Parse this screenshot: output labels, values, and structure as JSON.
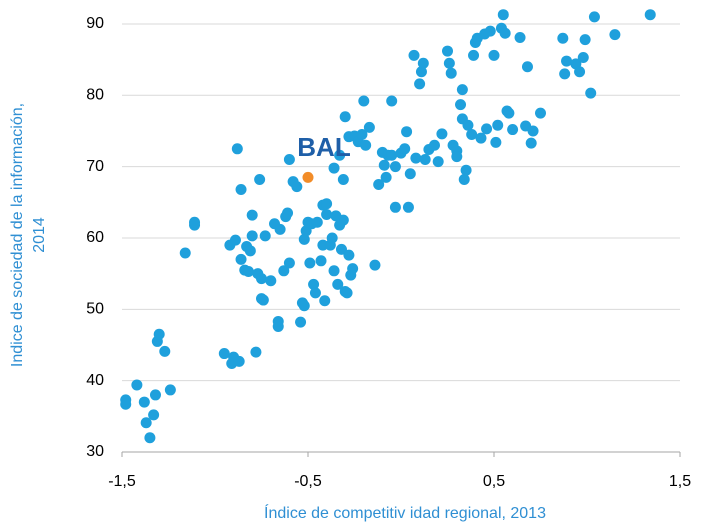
{
  "chart_data": {
    "type": "scatter",
    "xlabel": "Índice de competitiv idad regional,  2013",
    "ylabel": [
      "Indice de sociedad de la información,",
      "2014"
    ],
    "color": "#1fa0dc",
    "x": [
      -1.48,
      -1.48,
      -1.42,
      -1.38,
      -1.37,
      -1.35,
      -1.33,
      -1.32,
      -1.31,
      -1.3,
      -1.27,
      -1.24,
      -1.16,
      -1.11,
      -1.11,
      -0.95,
      -0.91,
      -0.9,
      -0.87,
      -0.92,
      -0.89,
      -0.88,
      -0.86,
      -0.86,
      -0.84,
      -0.83,
      -0.82,
      -0.81,
      -0.8,
      -0.8,
      -0.78,
      -0.77,
      -0.76,
      -0.75,
      -0.75,
      -0.74,
      -0.73,
      -0.7,
      -0.68,
      -0.66,
      -0.66,
      -0.65,
      -0.63,
      -0.62,
      -0.61,
      -0.6,
      -0.6,
      -0.58,
      -0.56,
      -0.54,
      -0.53,
      -0.52,
      -0.52,
      -0.51,
      -0.5,
      -0.49,
      -0.48,
      -0.47,
      -0.46,
      -0.45,
      -0.43,
      -0.42,
      -0.42,
      -0.41,
      -0.4,
      -0.4,
      -0.38,
      -0.37,
      -0.36,
      -0.35,
      -0.34,
      -0.33,
      -0.32,
      -0.31,
      -0.3,
      -0.29,
      -0.28,
      -0.27,
      -0.26,
      -0.36,
      -0.33,
      -0.31,
      -0.3,
      -0.28,
      -0.25,
      -0.23,
      -0.21,
      -0.2,
      -0.19,
      -0.17,
      -0.14,
      -0.12,
      -0.1,
      -0.09,
      -0.08,
      -0.07,
      -0.05,
      -0.05,
      -0.03,
      -0.03,
      0.0,
      0.02,
      0.03,
      0.04,
      0.05,
      0.07,
      0.08,
      0.1,
      0.11,
      0.12,
      0.13,
      0.15,
      0.18,
      0.2,
      0.22,
      0.25,
      0.26,
      0.27,
      0.28,
      0.3,
      0.3,
      0.32,
      0.33,
      0.33,
      0.34,
      0.35,
      0.36,
      0.38,
      0.39,
      0.4,
      0.41,
      0.43,
      0.45,
      0.46,
      0.48,
      0.5,
      0.51,
      0.52,
      0.54,
      0.55,
      0.56,
      0.57,
      0.58,
      0.6,
      0.64,
      0.67,
      0.68,
      0.7,
      0.71,
      0.75,
      0.87,
      0.88,
      0.89,
      0.94,
      0.96,
      0.98,
      0.99,
      1.02,
      1.04,
      1.15,
      1.34
    ],
    "y": [
      37.3,
      36.7,
      39.4,
      37.0,
      34.1,
      32.0,
      35.2,
      38.0,
      45.5,
      46.5,
      44.1,
      38.7,
      57.9,
      61.8,
      62.2,
      43.8,
      42.4,
      43.3,
      42.7,
      59.0,
      59.7,
      72.5,
      66.8,
      57.0,
      55.5,
      58.8,
      55.3,
      58.2,
      60.3,
      63.2,
      44.0,
      55.0,
      68.2,
      54.3,
      51.5,
      51.3,
      60.3,
      54.0,
      62.0,
      47.6,
      48.3,
      61.2,
      55.4,
      63.0,
      63.5,
      56.5,
      71.0,
      67.9,
      67.2,
      48.2,
      50.9,
      50.5,
      59.8,
      61.0,
      62.2,
      56.5,
      62.0,
      53.5,
      52.3,
      62.2,
      56.8,
      64.6,
      59.0,
      51.2,
      63.3,
      64.8,
      59.0,
      60.0,
      55.4,
      63.1,
      53.5,
      61.8,
      58.4,
      62.5,
      52.5,
      52.3,
      57.6,
      54.8,
      55.7,
      69.8,
      71.6,
      68.2,
      77.0,
      74.2,
      74.3,
      73.5,
      74.5,
      79.2,
      73.0,
      75.5,
      56.2,
      67.5,
      72.0,
      70.2,
      68.5,
      71.6,
      79.2,
      71.6,
      70.0,
      64.3,
      71.9,
      72.5,
      74.9,
      64.3,
      69.0,
      85.6,
      71.2,
      81.6,
      83.3,
      84.5,
      71.0,
      72.4,
      73.0,
      70.7,
      74.6,
      86.2,
      84.5,
      83.1,
      73.0,
      72.2,
      71.4,
      78.7,
      80.8,
      76.7,
      68.2,
      69.5,
      75.8,
      74.5,
      85.6,
      87.4,
      88.0,
      74.0,
      88.6,
      75.3,
      89.0,
      85.6,
      73.4,
      75.8,
      89.4,
      91.3,
      88.7,
      77.8,
      77.5,
      75.2,
      88.1,
      75.7,
      84.0,
      73.3,
      75.0,
      77.5,
      88.0,
      83.0,
      84.8,
      84.4,
      83.3,
      85.3,
      87.8,
      80.3,
      91.0,
      88.5,
      91.3
    ],
    "highlight": {
      "label": "BAL",
      "x": -0.5,
      "y": 68.5,
      "color": "#f28c28",
      "label_color": "#1f5fa8"
    },
    "xlim": [
      -1.5,
      1.5
    ],
    "xticks": [
      {
        "value": -1.5,
        "label": "-1,5"
      },
      {
        "value": -0.5,
        "label": "-0,5"
      },
      {
        "value": 0.5,
        "label": "0,5"
      },
      {
        "value": 1.5,
        "label": "1,5"
      }
    ],
    "ylim": [
      30,
      92
    ],
    "yticks": [
      30,
      40,
      50,
      60,
      70,
      80,
      90
    ],
    "grid": true
  }
}
